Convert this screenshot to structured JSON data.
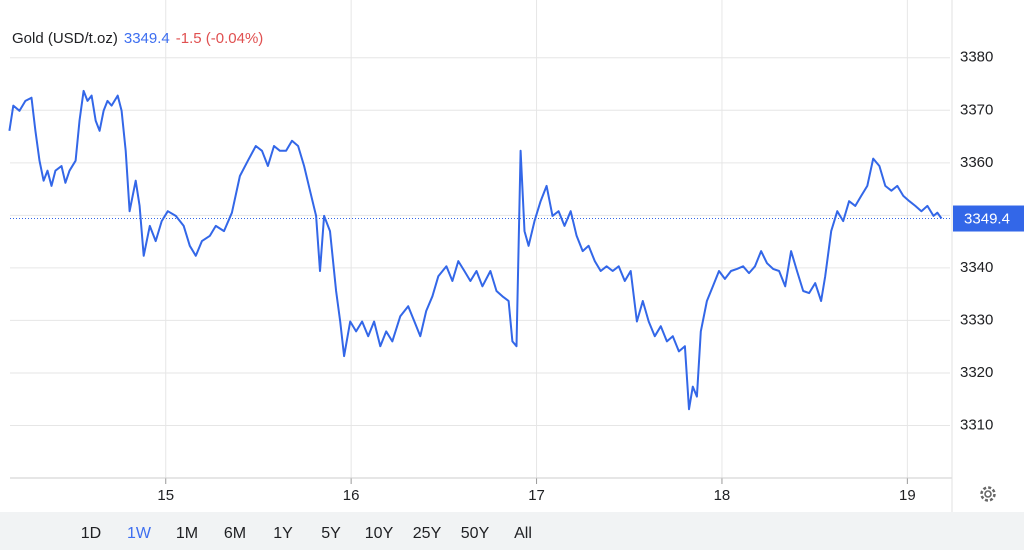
{
  "chart_data": {
    "type": "line",
    "title": "Gold (USD/t.oz)",
    "last_price": 3349.4,
    "change_label": "-1.5 (-0.04%)",
    "color": "#3367e8",
    "price_color": "#3d6ef0",
    "change_color": "#e05050",
    "x": [
      14.157,
      14.178,
      14.211,
      14.243,
      14.276,
      14.297,
      14.319,
      14.341,
      14.362,
      14.384,
      14.405,
      14.438,
      14.459,
      14.481,
      14.514,
      14.535,
      14.557,
      14.578,
      14.6,
      14.622,
      14.643,
      14.665,
      14.686,
      14.708,
      14.741,
      14.762,
      14.784,
      14.805,
      14.838,
      14.859,
      14.881,
      14.914,
      14.946,
      14.978,
      15.011,
      15.054,
      15.097,
      15.13,
      15.162,
      15.195,
      15.238,
      15.27,
      15.314,
      15.357,
      15.4,
      15.443,
      15.486,
      15.519,
      15.551,
      15.584,
      15.616,
      15.649,
      15.681,
      15.714,
      15.746,
      15.778,
      15.811,
      15.832,
      15.854,
      15.886,
      15.919,
      15.941,
      15.962,
      15.995,
      16.027,
      16.059,
      16.092,
      16.124,
      16.157,
      16.189,
      16.222,
      16.265,
      16.308,
      16.341,
      16.373,
      16.405,
      16.438,
      16.47,
      16.514,
      16.546,
      16.578,
      16.611,
      16.643,
      16.676,
      16.708,
      16.751,
      16.784,
      16.816,
      16.849,
      16.87,
      16.892,
      16.914,
      16.935,
      16.957,
      16.989,
      17.022,
      17.054,
      17.086,
      17.119,
      17.151,
      17.184,
      17.216,
      17.249,
      17.281,
      17.314,
      17.346,
      17.378,
      17.411,
      17.443,
      17.476,
      17.508,
      17.541,
      17.573,
      17.605,
      17.638,
      17.67,
      17.703,
      17.735,
      17.768,
      17.8,
      17.822,
      17.843,
      17.865,
      17.886,
      17.919,
      17.951,
      17.984,
      18.016,
      18.049,
      18.081,
      18.114,
      18.146,
      18.178,
      18.211,
      18.243,
      18.276,
      18.308,
      18.341,
      18.373,
      18.405,
      18.438,
      18.47,
      18.503,
      18.535,
      18.557,
      18.589,
      18.622,
      18.654,
      18.686,
      18.719,
      18.751,
      18.784,
      18.816,
      18.849,
      18.881,
      18.914,
      18.946,
      18.978,
      19.011,
      19.043,
      19.076,
      19.108,
      19.141,
      19.162,
      19.184
    ],
    "values": [
      3366.1,
      3370.9,
      3369.9,
      3371.8,
      3372.4,
      3366.1,
      3360.4,
      3356.6,
      3358.5,
      3355.6,
      3358.5,
      3359.4,
      3356.2,
      3358.5,
      3360.4,
      3368.0,
      3373.7,
      3371.8,
      3372.8,
      3368.0,
      3366.1,
      3369.9,
      3371.8,
      3370.9,
      3372.8,
      3369.9,
      3362.3,
      3350.8,
      3356.6,
      3351.8,
      3342.3,
      3348.0,
      3345.1,
      3348.9,
      3350.8,
      3349.9,
      3348.0,
      3344.2,
      3342.3,
      3345.1,
      3346.1,
      3348.0,
      3347.0,
      3350.5,
      3357.5,
      3360.4,
      3363.2,
      3362.3,
      3359.4,
      3363.2,
      3362.3,
      3362.3,
      3364.2,
      3363.2,
      3359.4,
      3354.7,
      3349.9,
      3339.4,
      3349.9,
      3347.0,
      3335.6,
      3329.8,
      3323.2,
      3329.8,
      3327.9,
      3329.8,
      3327.0,
      3329.8,
      3325.1,
      3327.9,
      3326.0,
      3330.8,
      3332.7,
      3329.8,
      3327.0,
      3331.8,
      3334.6,
      3338.4,
      3340.3,
      3337.5,
      3341.3,
      3339.4,
      3337.5,
      3339.4,
      3336.5,
      3339.4,
      3335.6,
      3334.6,
      3333.7,
      3326.0,
      3325.1,
      3362.3,
      3347.0,
      3344.2,
      3348.9,
      3352.7,
      3355.6,
      3349.9,
      3350.8,
      3348.0,
      3350.8,
      3346.1,
      3343.2,
      3344.2,
      3341.3,
      3339.4,
      3340.3,
      3339.4,
      3340.3,
      3337.5,
      3339.4,
      3329.8,
      3333.7,
      3329.8,
      3327.0,
      3328.9,
      3326.0,
      3327.0,
      3324.1,
      3325.1,
      3313.1,
      3317.4,
      3315.5,
      3327.9,
      3333.7,
      3336.5,
      3339.4,
      3337.9,
      3339.4,
      3339.8,
      3340.3,
      3339.0,
      3340.3,
      3343.2,
      3340.9,
      3339.8,
      3339.4,
      3336.5,
      3343.2,
      3339.4,
      3335.6,
      3335.2,
      3337.1,
      3333.7,
      3338.4,
      3347.0,
      3350.8,
      3348.9,
      3352.7,
      3351.8,
      3353.7,
      3355.6,
      3360.8,
      3359.4,
      3355.6,
      3354.7,
      3355.6,
      3353.7,
      3352.7,
      3351.8,
      3350.8,
      3351.8,
      3349.9,
      3350.5,
      3349.4
    ],
    "xlim": [
      14.16,
      19.23
    ],
    "xticks": [
      15,
      16,
      17,
      18,
      19
    ],
    "ylim": [
      3300,
      3391
    ],
    "yticks": [
      3310,
      3320,
      3330,
      3340,
      3350,
      3360,
      3370,
      3380
    ],
    "grid": true
  },
  "range_selector": {
    "options": [
      "1D",
      "1W",
      "1M",
      "6M",
      "1Y",
      "5Y",
      "10Y",
      "25Y",
      "50Y",
      "All"
    ],
    "selected": 1,
    "selected_color": "#3d6ef0"
  }
}
